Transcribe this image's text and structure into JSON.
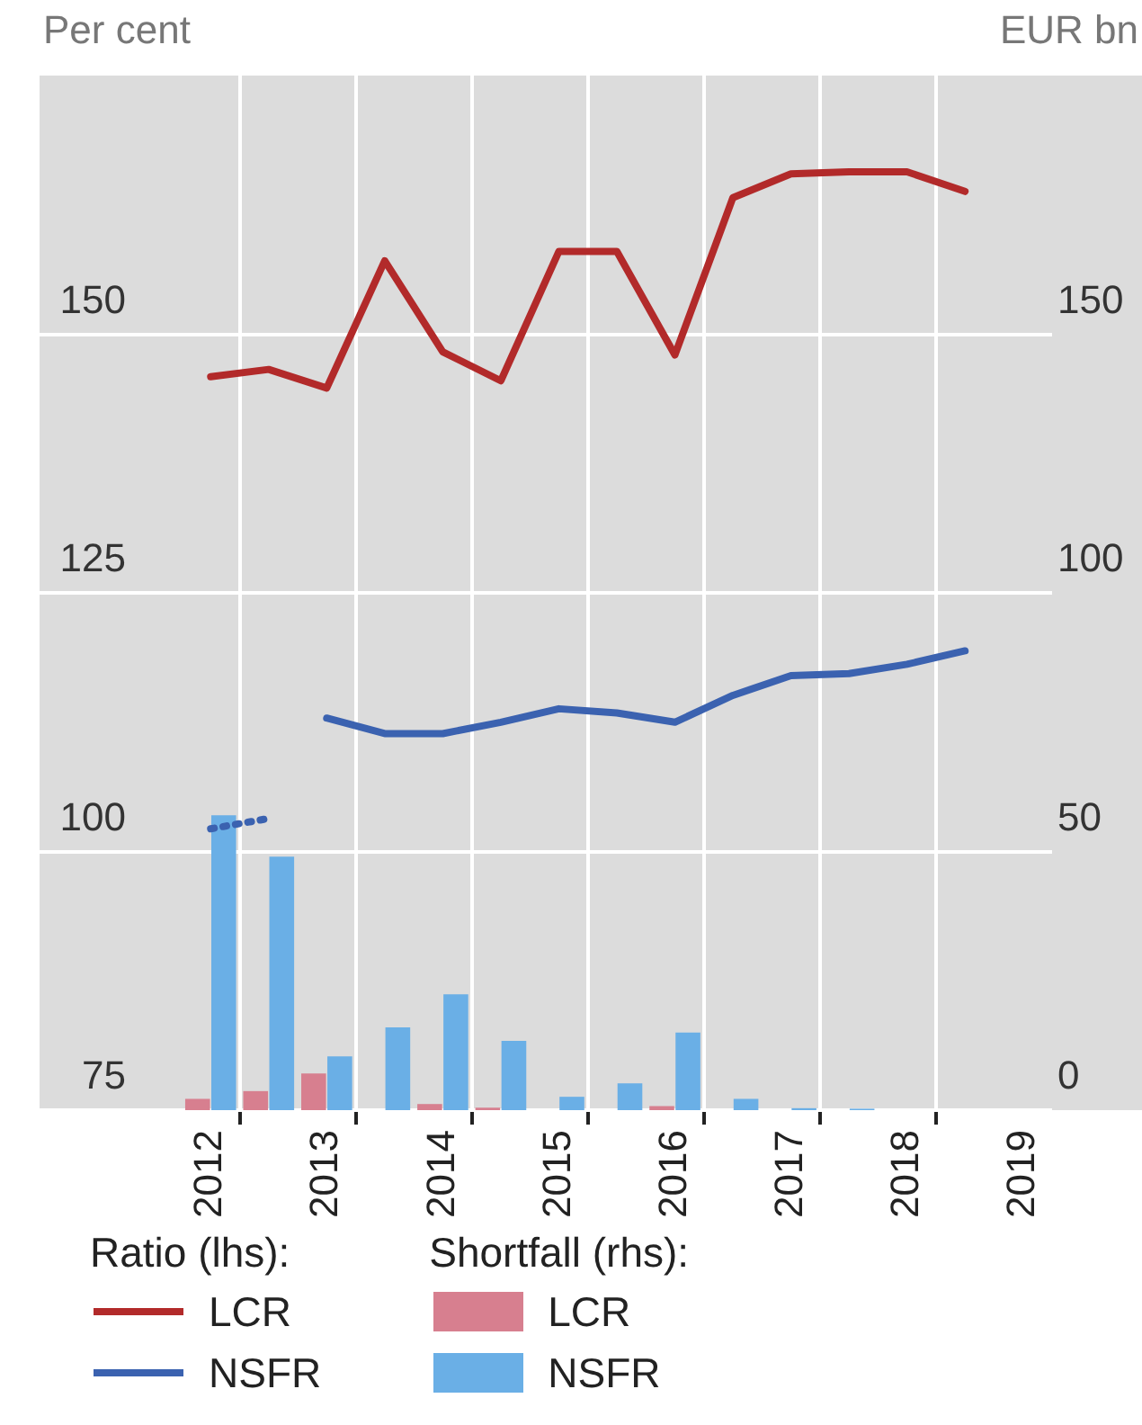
{
  "chart_data": {
    "type": "line",
    "ylabel": "Per cent",
    "y2label": "EUR bn",
    "categories": [
      "2012",
      null,
      "2013",
      null,
      "2014",
      null,
      "2015",
      null,
      "2016",
      null,
      "2017",
      null,
      "2018",
      null,
      "2019"
    ],
    "series": [
      {
        "name": "LCR",
        "color": "#b22a2a",
        "values": [
          145.9,
          146.6,
          144.8,
          157.1,
          148.3,
          145.5,
          158.0,
          158.0,
          148.0,
          163.2,
          165.5,
          165.7,
          165.7,
          163.8,
          null
        ]
      },
      {
        "name": "NSFR",
        "color": "#3b62b0",
        "values": [
          null,
          null,
          112.9,
          111.4,
          111.4,
          112.5,
          113.8,
          113.4,
          112.5,
          115.1,
          117.0,
          117.2,
          118.1,
          119.4,
          null
        ]
      },
      {
        "color": "#3b62b0",
        "line_style": "dotted",
        "values": [
          102.2,
          103.2,
          null,
          null,
          null,
          null,
          null,
          null,
          null,
          null,
          null,
          null,
          null,
          null,
          null
        ]
      },
      {
        "name": "LCR",
        "type": "bar",
        "axis": "y2",
        "color": "#d77f8f",
        "values": [
          2.2,
          3.7,
          7.1,
          0,
          1.2,
          0.5,
          0,
          0,
          0.8,
          0,
          0,
          0,
          0,
          0,
          null
        ]
      },
      {
        "name": "NSFR",
        "type": "bar",
        "axis": "y2",
        "color": "#6aafe6",
        "values": [
          57,
          49,
          10.4,
          16,
          22.4,
          13.4,
          2.6,
          5.2,
          15,
          2.2,
          0.4,
          0.3,
          0,
          0,
          null
        ]
      }
    ],
    "ylim": [
      75,
      175
    ],
    "yticks": [
      75,
      100,
      125,
      150
    ],
    "y2lim": [
      0,
      200
    ],
    "y2ticks": [
      0,
      50,
      100,
      150
    ],
    "grid": true,
    "legend": "bottom",
    "line_style": "solid",
    "marker": "none",
    "annotations": [
      "Ratio (lhs):",
      "Shortfall (rhs):"
    ]
  }
}
